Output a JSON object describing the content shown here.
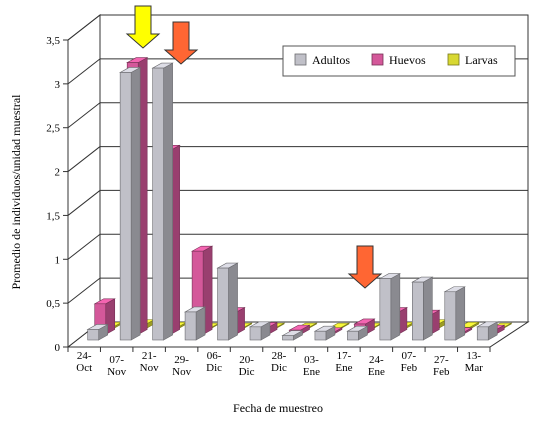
{
  "chart_data": {
    "type": "bar",
    "title": "",
    "xlabel": "Fecha de muestreo",
    "ylabel": "Promedio de individuos/unidad muestral",
    "ylim": [
      0,
      3.5
    ],
    "yticks": [
      "0",
      "0,5",
      "1",
      "1,5",
      "2",
      "2,5",
      "3",
      "3,5"
    ],
    "categories": [
      [
        "24-",
        "Oct"
      ],
      [
        "07-",
        "Nov"
      ],
      [
        "21-",
        "Nov"
      ],
      [
        "29-",
        "Nov"
      ],
      [
        "06-",
        "Dic"
      ],
      [
        "20-",
        "Dic"
      ],
      [
        "28-",
        "Dic"
      ],
      [
        "03-",
        "Ene"
      ],
      [
        "17-",
        "Ene"
      ],
      [
        "24-",
        "Ene"
      ],
      [
        "07-",
        "Feb"
      ],
      [
        "27-",
        "Feb"
      ],
      [
        "13-",
        "Mar"
      ]
    ],
    "series": [
      {
        "name": "Adultos",
        "color": "#c0c0c8",
        "values": [
          0.12,
          3.05,
          3.1,
          0.32,
          0.82,
          0.15,
          0.05,
          0.1,
          0.1,
          0.7,
          0.66,
          0.55,
          0.15
        ]
      },
      {
        "name": "Huevos",
        "color": "#d4589a",
        "values": [
          0.35,
          3.1,
          2.1,
          0.95,
          0.25,
          0.08,
          0.05,
          0.02,
          0.12,
          0.25,
          0.22,
          0.02,
          0.05
        ]
      },
      {
        "name": "Larvas",
        "color": "#d8d832",
        "values": [
          0.02,
          0.05,
          0.02,
          0.01,
          0.01,
          0.01,
          0.01,
          0.01,
          0.01,
          0.02,
          0.05,
          0.02,
          0.01
        ]
      }
    ],
    "legend": {
      "position": "top-right",
      "labels": [
        "Adultos",
        "Huevos",
        "Larvas"
      ]
    },
    "grid": true,
    "annotations": [
      {
        "type": "arrow",
        "color": "#ffff00",
        "category": "07-Nov"
      },
      {
        "type": "arrow",
        "color": "#ff6633",
        "category": "29-Nov"
      },
      {
        "type": "arrow",
        "color": "#ff6633",
        "category": "17-Ene"
      }
    ]
  }
}
